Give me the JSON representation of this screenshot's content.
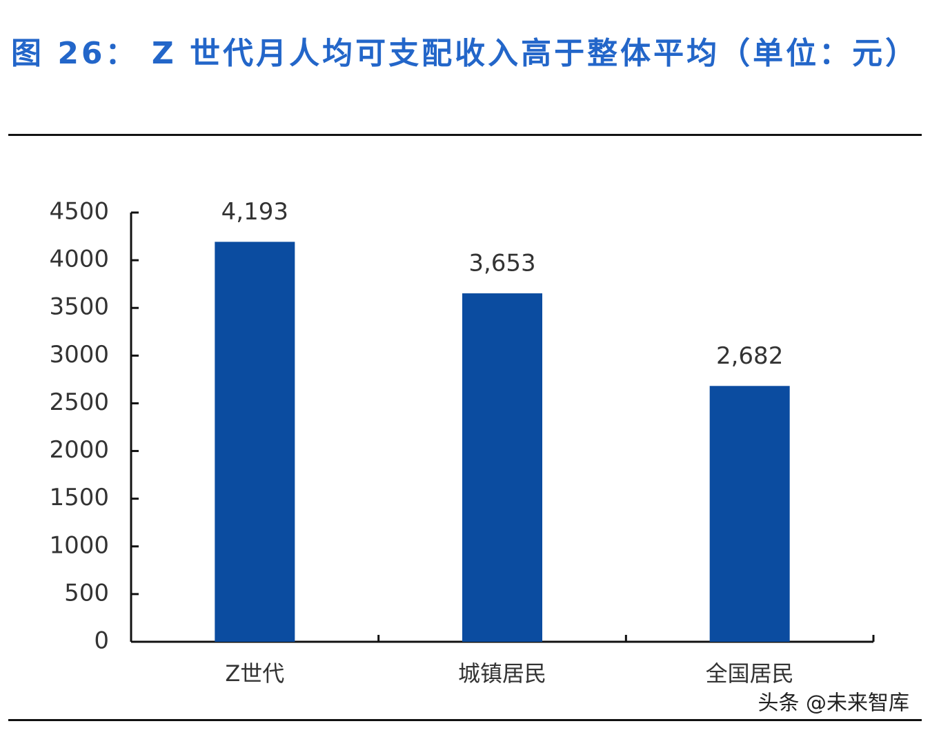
{
  "chart_data": {
    "type": "bar",
    "title": "图 26： Z 世代月人均可支配收入高于整体平均（单位：元）",
    "categories": [
      "Z世代",
      "城镇居民",
      "全国居民"
    ],
    "values": [
      4193,
      3653,
      2682
    ],
    "value_labels": [
      "4,193",
      "3,653",
      "2,682"
    ],
    "color": "#0b4ca0",
    "ylim": [
      0,
      4500
    ],
    "yticks": [
      0,
      500,
      1000,
      1500,
      2000,
      2500,
      3000,
      3500,
      4000,
      4500
    ],
    "grid": false
  },
  "watermark": "头条 @未来智库"
}
